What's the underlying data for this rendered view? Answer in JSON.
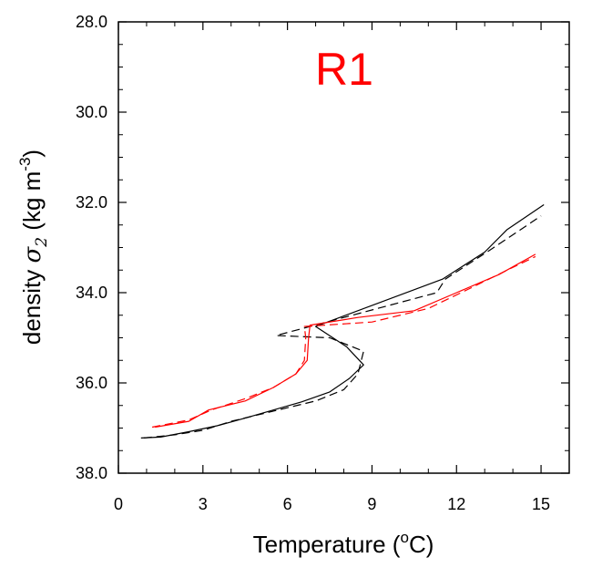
{
  "chart_data": {
    "type": "line",
    "title": "R1",
    "title_color": "#ff0000",
    "xlabel": "Temperature (",
    "xlabel_sup": "o",
    "xlabel_tail": "C)",
    "ylabel_prefix": "density ",
    "ylabel_symbol": "σ",
    "ylabel_sub": "2",
    "ylabel_unit": " (kg m",
    "ylabel_sup": "-3",
    "ylabel_tail": ")",
    "xlim": [
      0,
      16
    ],
    "ylim": [
      38,
      28
    ],
    "y_inverted": true,
    "x_ticks": [
      0,
      3,
      6,
      9,
      12,
      15
    ],
    "x_tick_labels": [
      "0",
      "3",
      "6",
      "9",
      "12",
      "15"
    ],
    "y_ticks": [
      28,
      30,
      32,
      34,
      36,
      38
    ],
    "y_tick_labels": [
      "28.0",
      "30.0",
      "32.0",
      "34.0",
      "36.0",
      "38.0"
    ],
    "grid": false,
    "series": [
      {
        "color": "#000000",
        "dash": "solid",
        "points": [
          [
            0.8,
            37.22
          ],
          [
            1.5,
            37.2
          ],
          [
            2.5,
            37.08
          ],
          [
            3.5,
            36.95
          ],
          [
            4.5,
            36.78
          ],
          [
            5.5,
            36.6
          ],
          [
            6.5,
            36.42
          ],
          [
            7.5,
            36.2
          ],
          [
            8.2,
            35.9
          ],
          [
            8.7,
            35.6
          ],
          [
            8.1,
            35.2
          ],
          [
            7.0,
            34.75
          ],
          [
            11.5,
            33.7
          ],
          [
            13.0,
            33.1
          ],
          [
            13.8,
            32.6
          ],
          [
            15.1,
            32.05
          ]
        ]
      },
      {
        "color": "#000000",
        "dash": "dashed",
        "points": [
          [
            0.9,
            37.22
          ],
          [
            2.0,
            37.15
          ],
          [
            3.0,
            37.05
          ],
          [
            4.0,
            36.85
          ],
          [
            5.0,
            36.7
          ],
          [
            6.0,
            36.55
          ],
          [
            7.0,
            36.4
          ],
          [
            8.0,
            36.15
          ],
          [
            8.5,
            35.8
          ],
          [
            8.7,
            35.3
          ],
          [
            7.5,
            35.0
          ],
          [
            5.6,
            34.95
          ],
          [
            6.8,
            34.75
          ],
          [
            11.3,
            34.0
          ],
          [
            11.6,
            33.7
          ],
          [
            13.2,
            33.05
          ],
          [
            15.0,
            32.3
          ]
        ]
      },
      {
        "color": "#ff0000",
        "dash": "solid",
        "points": [
          [
            1.3,
            36.98
          ],
          [
            2.5,
            36.85
          ],
          [
            3.2,
            36.6
          ],
          [
            4.5,
            36.4
          ],
          [
            5.5,
            36.1
          ],
          [
            6.3,
            35.8
          ],
          [
            6.7,
            35.5
          ],
          [
            6.75,
            35.0
          ],
          [
            6.8,
            34.72
          ],
          [
            8.5,
            34.55
          ],
          [
            10.5,
            34.4
          ],
          [
            12.0,
            34.0
          ],
          [
            13.5,
            33.6
          ],
          [
            14.8,
            33.15
          ]
        ]
      },
      {
        "color": "#ff0000",
        "dash": "dashed",
        "points": [
          [
            1.2,
            36.98
          ],
          [
            2.5,
            36.82
          ],
          [
            3.3,
            36.6
          ],
          [
            4.5,
            36.35
          ],
          [
            5.5,
            36.1
          ],
          [
            6.3,
            35.8
          ],
          [
            6.6,
            35.5
          ],
          [
            6.65,
            35.0
          ],
          [
            6.6,
            34.75
          ],
          [
            9.0,
            34.65
          ],
          [
            11.0,
            34.35
          ],
          [
            12.5,
            33.9
          ],
          [
            13.8,
            33.5
          ],
          [
            14.8,
            33.2
          ]
        ]
      }
    ]
  }
}
